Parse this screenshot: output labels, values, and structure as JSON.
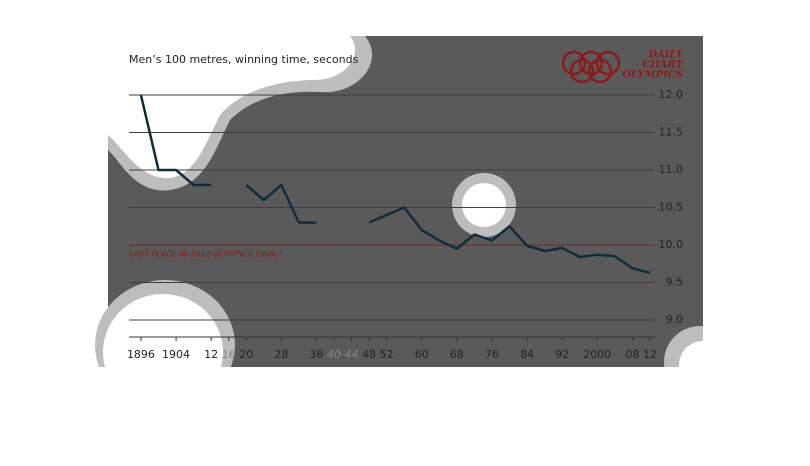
{
  "chart_data": {
    "type": "line",
    "title": "Men’s 100 metres, winning time, seconds",
    "logo": [
      "DAILY",
      "CHART",
      "OLYMPICS"
    ],
    "x": [
      1896,
      1900,
      1904,
      1908,
      1912,
      1916,
      1920,
      1924,
      1928,
      1932,
      1936,
      1940,
      1944,
      1948,
      1952,
      1956,
      1960,
      1964,
      1968,
      1972,
      1976,
      1980,
      1984,
      1988,
      1992,
      1996,
      2000,
      2004,
      2008,
      2012
    ],
    "series": [
      {
        "name": "Winning time",
        "color": "#0f2e3c",
        "values": [
          12.0,
          11.0,
          11.0,
          10.8,
          10.8,
          null,
          10.8,
          10.6,
          10.8,
          10.3,
          10.3,
          null,
          null,
          10.3,
          10.4,
          10.5,
          10.2,
          10.06,
          9.95,
          10.14,
          10.06,
          10.25,
          9.99,
          9.92,
          9.96,
          9.84,
          9.87,
          9.85,
          9.69,
          9.63
        ]
      }
    ],
    "reference_line": {
      "value": 10.0,
      "label": "LAST PLACE IN 2012 OLYMPICS FINAL*",
      "color": "#8b1a1a"
    },
    "xlim": [
      1892,
      2015
    ],
    "xticks": [
      {
        "value": 1896,
        "label": "1896"
      },
      {
        "value": 1904,
        "label": "1904"
      },
      {
        "value": 1912,
        "label": "12"
      },
      {
        "value": 1916,
        "label": "16"
      },
      {
        "value": 1920,
        "label": "20"
      },
      {
        "value": 1928,
        "label": "28"
      },
      {
        "value": 1936,
        "label": "36"
      },
      {
        "value": 1940,
        "label": "40"
      },
      {
        "value": 1944,
        "label": "44"
      },
      {
        "value": 1948,
        "label": "48"
      },
      {
        "value": 1952,
        "label": "52"
      },
      {
        "value": 1960,
        "label": "60"
      },
      {
        "value": 1968,
        "label": "68"
      },
      {
        "value": 1976,
        "label": "76"
      },
      {
        "value": 1984,
        "label": "84"
      },
      {
        "value": 1992,
        "label": "92"
      },
      {
        "value": 2000,
        "label": "2000"
      },
      {
        "value": 2008,
        "label": "08"
      },
      {
        "value": 2012,
        "label": "12"
      }
    ],
    "xticks_no_games": [
      1916,
      1940,
      1944
    ],
    "ylim": [
      8.8,
      12.2
    ],
    "yticks": [
      {
        "value": 9,
        "label": "9.0"
      },
      9.5,
      {
        "value": 10,
        "label": "10.0"
      },
      10.5,
      {
        "value": 11,
        "label": "11.0"
      },
      11.5,
      {
        "value": 12,
        "label": "12.0"
      }
    ],
    "grid": true
  }
}
